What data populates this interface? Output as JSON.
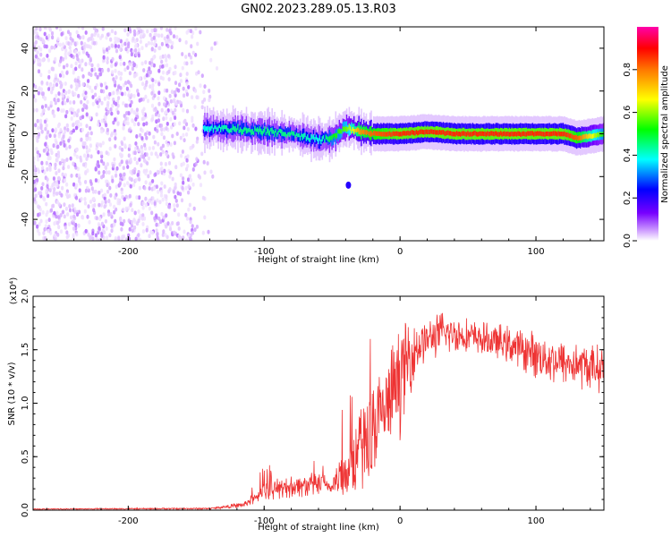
{
  "figure": {
    "title": "GN02.2023.289.05.13.R03"
  },
  "chart_data": [
    {
      "type": "heatmap",
      "xlabel": "Height of straight line (km)",
      "ylabel": "Frequency (Hz)",
      "xlim": [
        -270,
        150
      ],
      "ylim": [
        -50,
        50
      ],
      "x_ticks": [
        -200,
        -100,
        0,
        100
      ],
      "x_tick_labels": [
        "-200",
        "-100",
        "0",
        "100"
      ],
      "y_ticks": [
        -40,
        -20,
        0,
        20,
        40
      ],
      "y_tick_labels": [
        "-40",
        "-20",
        "0",
        "20",
        "40"
      ],
      "colorbar": {
        "label": "Normalized spectral amplitude",
        "range": [
          0,
          1
        ],
        "ticks": [
          0,
          0.2,
          0.4,
          0.6,
          0.8
        ],
        "tick_labels": [
          "0.0",
          "0.2",
          "0.4",
          "0.6",
          "0.8"
        ],
        "colormap": [
          "#ffffff",
          "#cc99ff",
          "#7700ff",
          "#0000ff",
          "#00ffff",
          "#00ff00",
          "#ffff00",
          "#ff7700",
          "#ff0000",
          "#ff00aa"
        ]
      },
      "regions": [
        {
          "description": "noise",
          "x_range": [
            -270,
            -132
          ],
          "f_range": [
            -50,
            50
          ]
        },
        {
          "description": "signal band",
          "x": [
            -145,
            -120,
            -100,
            -80,
            -60,
            -50,
            -40,
            -30,
            -20,
            0,
            20,
            40,
            60,
            80,
            100,
            120,
            130,
            150
          ],
          "f_center": [
            3,
            2,
            1,
            0,
            -3,
            -2,
            3,
            1,
            0,
            0,
            1,
            0,
            0,
            0,
            0,
            0,
            -2,
            0
          ],
          "peak_amplitude": [
            0.45,
            0.5,
            0.5,
            0.5,
            0.45,
            0.55,
            0.6,
            0.75,
            0.8,
            0.85,
            0.85,
            0.85,
            0.85,
            0.85,
            0.85,
            0.85,
            0.8,
            0.55
          ]
        },
        {
          "description": "isolated blob",
          "x": -38,
          "f": -24,
          "amplitude": 0.3
        }
      ]
    },
    {
      "type": "line",
      "xlabel": "Height of straight line (km)",
      "ylabel": "SNR (10 * v/v)",
      "yscale_label": "(x10⁴)",
      "xlim": [
        -270,
        150
      ],
      "ylim": [
        0,
        2
      ],
      "x_ticks": [
        -200,
        -100,
        0,
        100
      ],
      "x_tick_labels": [
        "-200",
        "-100",
        "0",
        "100"
      ],
      "y_ticks": [
        0,
        0.5,
        1,
        1.5,
        2
      ],
      "y_tick_labels": [
        "0.0",
        "0.5",
        "1.0",
        "1.5",
        "2.0"
      ],
      "color": "#ee3333",
      "series": [
        {
          "envelope": {
            "x": [
              -270,
              -140,
              -115,
              -100,
              -80,
              -60,
              -50,
              -40,
              -30,
              -20,
              -10,
              0,
              10,
              20,
              30,
              40,
              60,
              80,
              100,
              120,
              150
            ],
            "y_mean": [
              0.01,
              0.015,
              0.05,
              0.18,
              0.22,
              0.24,
              0.22,
              0.38,
              0.55,
              0.75,
              0.95,
              1.25,
              1.5,
              1.6,
              1.65,
              1.65,
              1.6,
              1.55,
              1.45,
              1.38,
              1.32
            ],
            "y_spread": [
              0.005,
              0.01,
              0.03,
              0.1,
              0.12,
              0.13,
              0.1,
              0.35,
              0.45,
              0.55,
              0.5,
              0.6,
              0.35,
              0.2,
              0.25,
              0.2,
              0.18,
              0.2,
              0.25,
              0.25,
              0.25
            ]
          }
        }
      ]
    }
  ]
}
